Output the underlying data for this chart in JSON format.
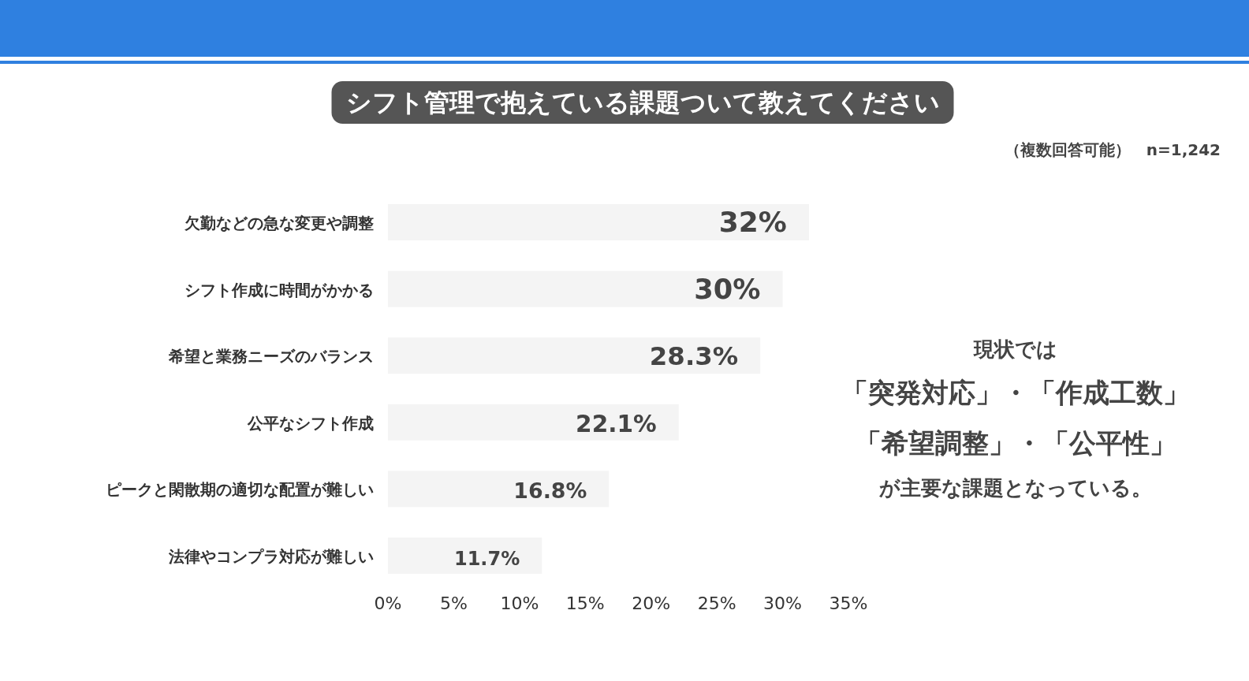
{
  "chart_data": {
    "type": "bar",
    "orientation": "horizontal",
    "title": "シフト管理で抱えている課題ついて教えてください",
    "subtitle": "（複数回答可能）　n=1,242",
    "categories": [
      "欠勤などの急な変更や調整",
      "シフト作成に時間がかかる",
      "希望と業務ニーズのバランス",
      "公平なシフト作成",
      "ピークと閑散期の適切な配置が難しい",
      "法律やコンプラ対応が難しい"
    ],
    "values": [
      32,
      30,
      28.3,
      22.1,
      16.8,
      11.7
    ],
    "value_labels": [
      "32%",
      "30%",
      "28.3%",
      "22.1%",
      "16.8%",
      "11.7%"
    ],
    "color": "#f4f4f4",
    "xlim": [
      0,
      35
    ],
    "xticks": [
      {
        "value": 0,
        "label": "0%"
      },
      {
        "value": 5,
        "label": "5%"
      },
      {
        "value": 10,
        "label": "10%"
      },
      {
        "value": 15,
        "label": "15%"
      },
      {
        "value": 20,
        "label": "20%"
      },
      {
        "value": 25,
        "label": "25%"
      },
      {
        "value": 30,
        "label": "30%"
      },
      {
        "value": 35,
        "label": "35%"
      }
    ],
    "grid": false,
    "annotations": [
      "現状では",
      "「突発対応」・「作成工数」",
      "「希望調整」・「公平性」",
      "が主要な課題となっている。"
    ]
  }
}
